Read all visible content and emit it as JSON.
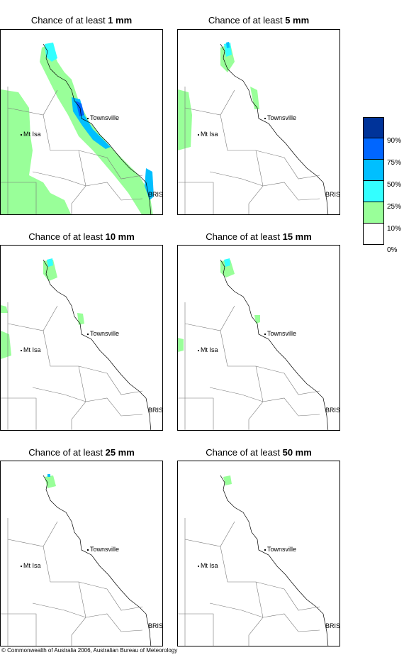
{
  "panels": [
    {
      "prefix": "Chance of at least ",
      "amount": "1 mm"
    },
    {
      "prefix": "Chance of at least ",
      "amount": "5 mm"
    },
    {
      "prefix": "Chance of at least ",
      "amount": "10 mm"
    },
    {
      "prefix": "Chance of at least ",
      "amount": "15 mm"
    },
    {
      "prefix": "Chance of at least ",
      "amount": "25 mm"
    },
    {
      "prefix": "Chance of at least ",
      "amount": "50 mm"
    }
  ],
  "places": {
    "townsville": "Townsville",
    "mt_isa": "Mt Isa",
    "bris": "BRIS"
  },
  "legend": {
    "labels": [
      "90%",
      "75%",
      "50%",
      "25%",
      "10%",
      "0%"
    ],
    "colors": [
      "#003399",
      "#0066ff",
      "#00bfff",
      "#33ffff",
      "#99ff99",
      "#ffffff"
    ]
  },
  "footer": "© Commonwealth of Australia 2006, Australian Bureau of Meteorology"
}
